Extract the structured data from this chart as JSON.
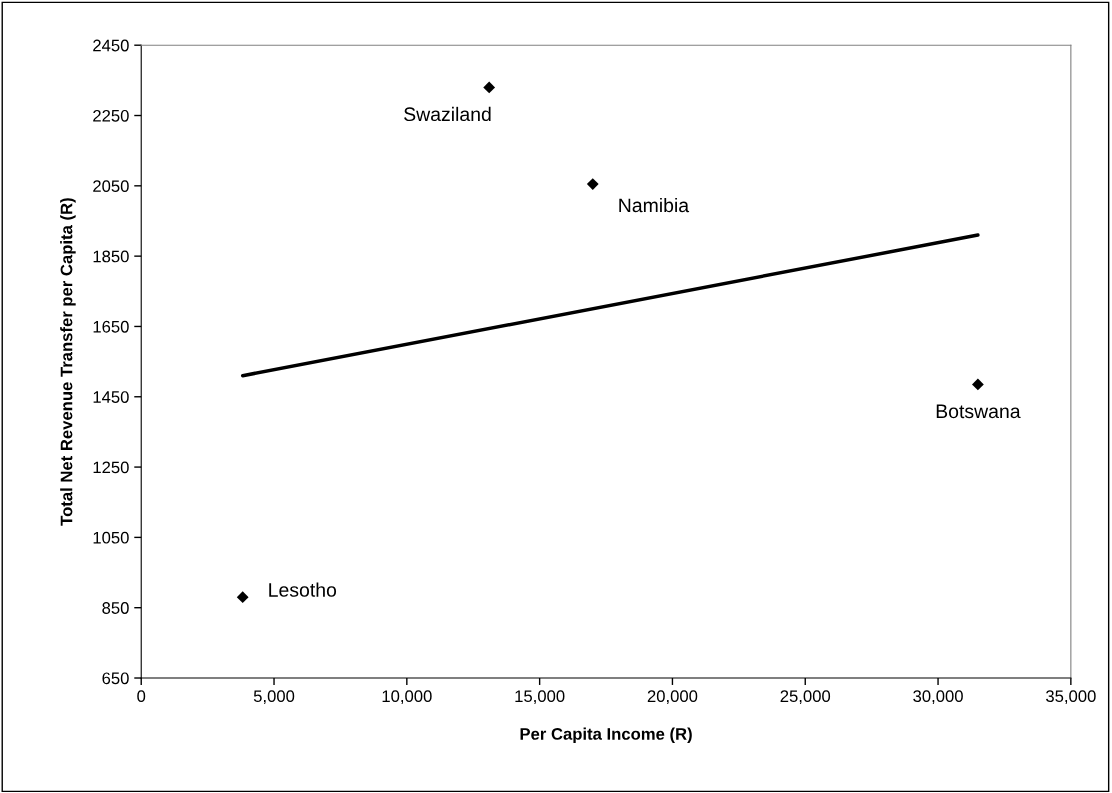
{
  "chart_data": {
    "type": "scatter",
    "xlabel": "Per Capita Income (R)",
    "ylabel": "Total Net Revenue Transfer per Capita (R)",
    "series": [
      {
        "color": "#000000",
        "marker": "diamond",
        "x": [
          3820,
          13100,
          17000,
          31500
        ],
        "values": [
          880,
          2330,
          2055,
          1485
        ]
      },
      {
        "type": "line",
        "color": "#000000",
        "marker": "none",
        "line_style": "solid",
        "x": [
          3820,
          31500
        ],
        "values": [
          1510,
          1910
        ]
      }
    ],
    "annotations": [
      {
        "text": "Lesotho",
        "x": 3820,
        "y": 880
      },
      {
        "text": "Swaziland",
        "x": 13100,
        "y": 2330
      },
      {
        "text": "Namibia",
        "x": 17000,
        "y": 2055
      },
      {
        "text": "Botswana",
        "x": 31500,
        "y": 1485
      }
    ],
    "xlim": [
      0,
      35000
    ],
    "ylim": [
      650,
      2450
    ],
    "xticks": [
      0,
      {
        "value": 5000,
        "label": "5,000"
      },
      {
        "value": 10000,
        "label": "10,000"
      },
      {
        "value": 15000,
        "label": "15,000"
      },
      {
        "value": 20000,
        "label": "20,000"
      },
      {
        "value": 25000,
        "label": "25,000"
      },
      {
        "value": 30000,
        "label": "30,000"
      },
      {
        "value": 35000,
        "label": "35,000"
      }
    ],
    "yticks": [
      650,
      850,
      1050,
      1250,
      1450,
      1650,
      1850,
      2050,
      2250,
      2450
    ],
    "grid": false,
    "legend": false
  }
}
